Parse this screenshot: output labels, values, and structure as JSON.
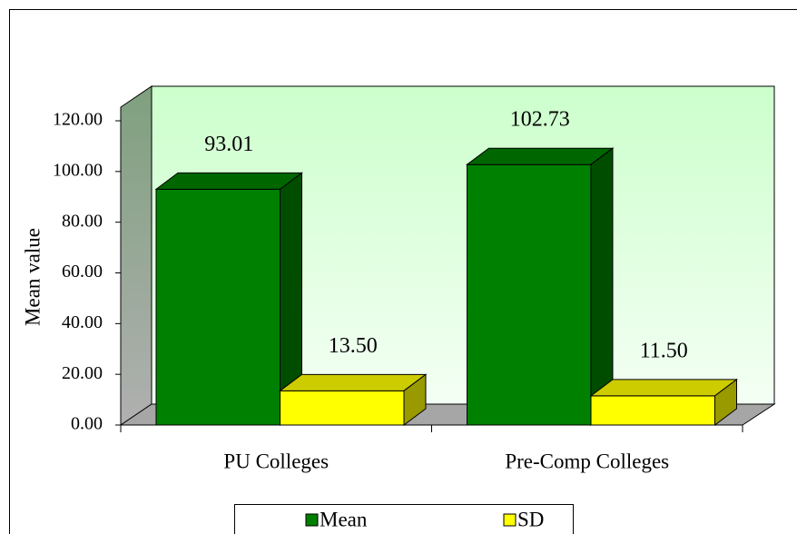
{
  "chart_data": {
    "type": "bar3d",
    "categories": [
      "PU Colleges",
      "Pre-Comp Colleges"
    ],
    "series": [
      {
        "name": "Mean",
        "color": "#008000",
        "values": [
          93.01,
          102.73
        ],
        "value_labels": [
          "93.01",
          "102.73"
        ]
      },
      {
        "name": "SD",
        "color": "#ffff00",
        "values": [
          13.5,
          11.5
        ],
        "value_labels": [
          "13.50",
          "11.50"
        ]
      }
    ],
    "ylabel": "Mean value",
    "ylim": [
      0,
      120
    ],
    "yticks": [
      {
        "value": 0,
        "label": "0.00"
      },
      {
        "value": 20,
        "label": "20.00"
      },
      {
        "value": 40,
        "label": "40.00"
      },
      {
        "value": 60,
        "label": "60.00"
      },
      {
        "value": 80,
        "label": "80.00"
      },
      {
        "value": 100,
        "label": "100.00"
      },
      {
        "value": 120,
        "label": "120.00"
      }
    ],
    "legend": "bottom"
  }
}
